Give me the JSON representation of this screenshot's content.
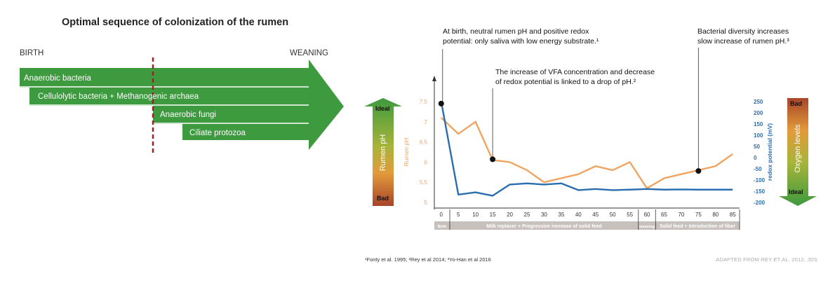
{
  "colors": {
    "green": "#3d9a3e",
    "orange": "#f0a460",
    "blue": "#2a6eb0",
    "redline": "#9b2525",
    "grey_band": "#c8c0bc"
  },
  "left_panel": {
    "title": "Optimal sequence of colonization of the rumen",
    "start_label": "BIRTH",
    "end_label": "WEANING",
    "bars": [
      {
        "label": "Anaerobic bacteria"
      },
      {
        "label": "Cellulolytic bacteria + Methanogenic archaea"
      },
      {
        "label": "Anaerobic fungi"
      },
      {
        "label": "Ciliate protozoa"
      }
    ]
  },
  "left_scale": {
    "label": "Rumen pH",
    "top": "Ideal",
    "bottom": "Bad"
  },
  "right_scale": {
    "label": "Oxygen levels",
    "top": "Bad",
    "bottom": "Ideal"
  },
  "annotations": [
    {
      "lines": [
        "At birth, neutral rumen pH and positive redox",
        "potential: only saliva with low energy substrate.¹"
      ]
    },
    {
      "lines": [
        "The increase of VFA concentration and decrease",
        "of redox potential is linked to a drop of pH.²"
      ]
    },
    {
      "lines": [
        "Bacterial diversity increases",
        "slow increase of rumen pH.³"
      ]
    }
  ],
  "footnote": "¹Fonty et al. 1995; ²Rey et al 2014; ³Yo-Han et al 2016",
  "credit": "ADAPTED FROM REY ET AL. 2012, JDS",
  "chart_data": {
    "type": "line",
    "x": [
      0,
      5,
      10,
      15,
      20,
      25,
      30,
      35,
      40,
      45,
      50,
      55,
      60,
      65,
      70,
      75,
      80,
      85
    ],
    "xlim": [
      -2,
      87
    ],
    "series": [
      {
        "name": "Rumen pH",
        "axis": "left",
        "color": "#f0a460",
        "values": [
          7.1,
          6.7,
          7.0,
          6.05,
          6.0,
          5.8,
          5.5,
          5.6,
          5.7,
          5.9,
          5.8,
          6.0,
          5.35,
          5.6,
          5.7,
          5.8,
          5.9,
          6.2
        ]
      },
      {
        "name": "redox potential (mV)",
        "axis": "right",
        "color": "#2a6eb0",
        "values": [
          250,
          -165,
          -155,
          -170,
          -120,
          -115,
          -120,
          -115,
          -145,
          -140,
          -145,
          -143,
          -140,
          -143,
          -142,
          -143,
          -143,
          -143
        ]
      }
    ],
    "left_axis": {
      "label": "Rumen pH",
      "ticks": [
        5,
        5.5,
        6,
        6.5,
        7,
        7.5
      ],
      "ylim": [
        5,
        7.5
      ]
    },
    "right_axis": {
      "label": "redox potential (mV)",
      "ticks": [
        250,
        200,
        150,
        100,
        50,
        0,
        -50,
        -100,
        -150,
        -200
      ],
      "ylim": [
        -200,
        250
      ]
    },
    "markers": [
      {
        "x": 0,
        "y": 7.45
      },
      {
        "x": 15,
        "y": 6.07
      },
      {
        "x": 75,
        "y": 5.78
      }
    ],
    "phases": [
      {
        "label": "Birth",
        "x_range": [
          -2,
          2.5
        ]
      },
      {
        "label": "Milk replacer + Progressive increase of solid feed",
        "x_range": [
          2.5,
          57.5
        ]
      },
      {
        "label": "weaning",
        "x_range": [
          57.5,
          62.5
        ]
      },
      {
        "label": "Solid feed + Introduction of fiber",
        "x_range": [
          62.5,
          87
        ]
      }
    ],
    "grid": false
  }
}
